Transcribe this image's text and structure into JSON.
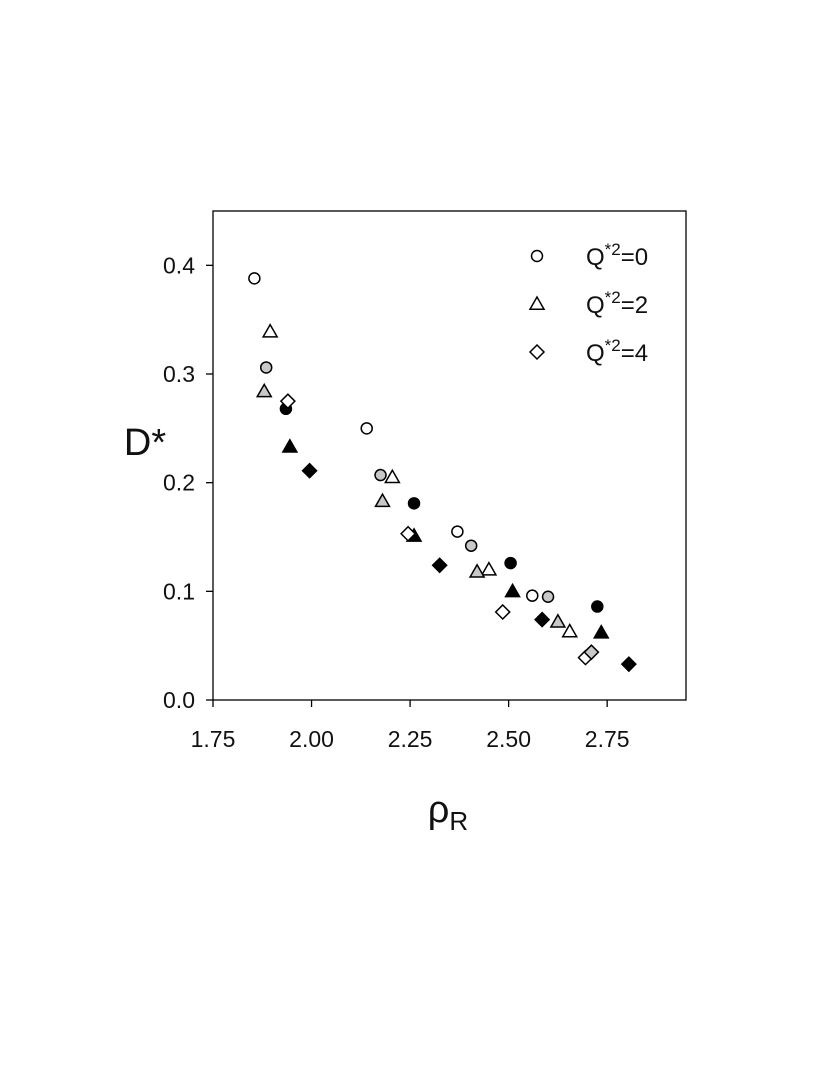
{
  "chart_data": {
    "type": "scatter",
    "title": "",
    "ylabel": "D*",
    "xlabel": {
      "symbol": "ρ",
      "subscript": "R"
    },
    "xlim": [
      1.75,
      2.95
    ],
    "ylim": [
      0.0,
      0.45
    ],
    "x_ticks": [
      1.75,
      2.0,
      2.25,
      2.5,
      2.75
    ],
    "x_tick_labels": [
      "1.75",
      "2.00",
      "2.25",
      "2.50",
      "2.75"
    ],
    "y_ticks": [
      0.0,
      0.1,
      0.2,
      0.3,
      0.4
    ],
    "y_tick_labels": [
      "0.0",
      "0.1",
      "0.2",
      "0.3",
      "0.4"
    ],
    "grid": false,
    "legend_position": "top-right",
    "legend": [
      {
        "marker": "circle",
        "base": "Q",
        "sup": "*2",
        "suffix": "=0"
      },
      {
        "marker": "triangle",
        "base": "Q",
        "sup": "*2",
        "suffix": "=2"
      },
      {
        "marker": "diamond",
        "base": "Q",
        "sup": "*2",
        "suffix": "=4"
      }
    ],
    "series": [
      {
        "marker": "circle",
        "points": [
          {
            "x": 1.855,
            "y": 0.388,
            "fill": "open"
          },
          {
            "x": 1.885,
            "y": 0.306,
            "fill": "gray"
          },
          {
            "x": 1.935,
            "y": 0.268,
            "fill": "black"
          },
          {
            "x": 2.14,
            "y": 0.25,
            "fill": "open"
          },
          {
            "x": 2.175,
            "y": 0.207,
            "fill": "gray"
          },
          {
            "x": 2.26,
            "y": 0.181,
            "fill": "black"
          },
          {
            "x": 2.37,
            "y": 0.155,
            "fill": "open"
          },
          {
            "x": 2.405,
            "y": 0.142,
            "fill": "gray"
          },
          {
            "x": 2.505,
            "y": 0.126,
            "fill": "black"
          },
          {
            "x": 2.56,
            "y": 0.096,
            "fill": "open"
          },
          {
            "x": 2.6,
            "y": 0.095,
            "fill": "gray"
          },
          {
            "x": 2.725,
            "y": 0.086,
            "fill": "black"
          }
        ]
      },
      {
        "marker": "triangle",
        "points": [
          {
            "x": 1.895,
            "y": 0.339,
            "fill": "open"
          },
          {
            "x": 1.88,
            "y": 0.284,
            "fill": "gray"
          },
          {
            "x": 1.945,
            "y": 0.233,
            "fill": "black"
          },
          {
            "x": 2.205,
            "y": 0.205,
            "fill": "open"
          },
          {
            "x": 2.18,
            "y": 0.183,
            "fill": "gray"
          },
          {
            "x": 2.26,
            "y": 0.151,
            "fill": "black"
          },
          {
            "x": 2.45,
            "y": 0.12,
            "fill": "open"
          },
          {
            "x": 2.42,
            "y": 0.118,
            "fill": "gray"
          },
          {
            "x": 2.51,
            "y": 0.1,
            "fill": "black"
          },
          {
            "x": 2.655,
            "y": 0.063,
            "fill": "open"
          },
          {
            "x": 2.625,
            "y": 0.072,
            "fill": "gray"
          },
          {
            "x": 2.735,
            "y": 0.062,
            "fill": "black"
          }
        ]
      },
      {
        "marker": "diamond",
        "points": [
          {
            "x": 1.94,
            "y": 0.275,
            "fill": "open"
          },
          {
            "x": 1.995,
            "y": 0.211,
            "fill": "black"
          },
          {
            "x": 2.245,
            "y": 0.153,
            "fill": "open"
          },
          {
            "x": 2.325,
            "y": 0.124,
            "fill": "black"
          },
          {
            "x": 2.485,
            "y": 0.081,
            "fill": "open"
          },
          {
            "x": 2.585,
            "y": 0.074,
            "fill": "black"
          },
          {
            "x": 2.695,
            "y": 0.039,
            "fill": "open"
          },
          {
            "x": 2.71,
            "y": 0.044,
            "fill": "gray"
          },
          {
            "x": 2.805,
            "y": 0.033,
            "fill": "black"
          }
        ]
      }
    ],
    "colors": {
      "open": "#ffffff",
      "gray": "#c8c8c8",
      "black": "#000000",
      "stroke": "#000000"
    }
  }
}
